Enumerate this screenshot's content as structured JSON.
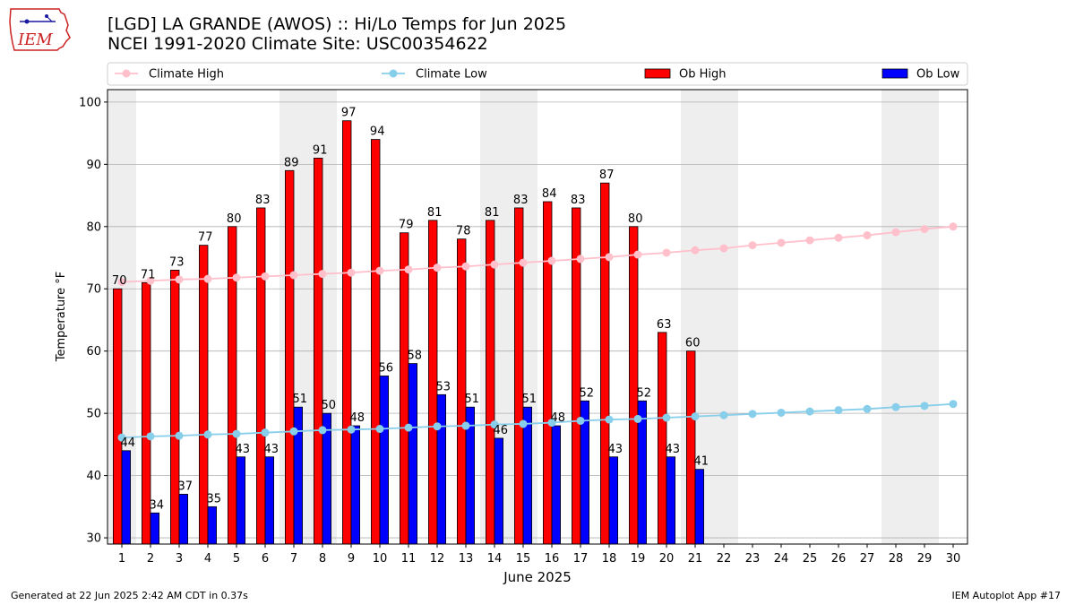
{
  "title_line1": "[LGD] LA GRANDE (AWOS) :: Hi/Lo Temps for Jun 2025",
  "title_line2": "NCEI 1991-2020 Climate Site: USC00354622",
  "logo_text": "IEM",
  "footer_left": "Generated at 22 Jun 2025 2:42 AM CDT in 0.37s",
  "footer_right": "IEM Autoplot App #17",
  "colors": {
    "climate_high": "#ffc0cb",
    "climate_low": "#87ceeb",
    "ob_high": "#ff0000",
    "ob_low": "#0000ff",
    "weekend_shade": "#eeeeee",
    "grid": "#b0b0b0"
  },
  "chart_data": {
    "type": "bar",
    "xlabel": "June 2025",
    "ylabel": "Temperature °F",
    "ylim": [
      29,
      102
    ],
    "yticks": [
      30,
      40,
      50,
      60,
      70,
      80,
      90,
      100
    ],
    "xlim": [
      0.5,
      30.5
    ],
    "grid": "horizontal",
    "legend_placement": "top, above plot",
    "categories": [
      "1",
      "2",
      "3",
      "4",
      "5",
      "6",
      "7",
      "8",
      "9",
      "10",
      "11",
      "12",
      "13",
      "14",
      "15",
      "16",
      "17",
      "18",
      "19",
      "20",
      "21",
      "22",
      "23",
      "24",
      "25",
      "26",
      "27",
      "28",
      "29",
      "30"
    ],
    "weekend_days": [
      1,
      7,
      8,
      14,
      15,
      21,
      22,
      28,
      29
    ],
    "series": [
      {
        "name": "Climate High",
        "kind": "line",
        "values": [
          71.1,
          71.3,
          71.5,
          71.6,
          71.8,
          72.0,
          72.2,
          72.4,
          72.6,
          72.9,
          73.1,
          73.4,
          73.6,
          73.9,
          74.2,
          74.5,
          74.8,
          75.1,
          75.5,
          75.8,
          76.2,
          76.5,
          77.0,
          77.4,
          77.8,
          78.2,
          78.6,
          79.1,
          79.6,
          80.0
        ]
      },
      {
        "name": "Climate Low",
        "kind": "line",
        "values": [
          46.1,
          46.3,
          46.4,
          46.6,
          46.7,
          46.9,
          47.1,
          47.3,
          47.4,
          47.5,
          47.7,
          47.9,
          48.0,
          48.2,
          48.3,
          48.5,
          48.8,
          49.0,
          49.1,
          49.3,
          49.5,
          49.7,
          49.9,
          50.1,
          50.3,
          50.5,
          50.7,
          51.0,
          51.2,
          51.5
        ]
      },
      {
        "name": "Ob High",
        "kind": "bar",
        "values": [
          70,
          71,
          73,
          77,
          80,
          83,
          89,
          91,
          97,
          94,
          79,
          81,
          78,
          81,
          83,
          84,
          83,
          87,
          80,
          63,
          60,
          null,
          null,
          null,
          null,
          null,
          null,
          null,
          null,
          null
        ]
      },
      {
        "name": "Ob Low",
        "kind": "bar",
        "values": [
          44,
          34,
          37,
          35,
          43,
          43,
          51,
          50,
          48,
          56,
          58,
          53,
          51,
          46,
          51,
          48,
          52,
          43,
          52,
          43,
          41,
          null,
          null,
          null,
          null,
          null,
          null,
          null,
          null,
          null
        ]
      }
    ]
  }
}
